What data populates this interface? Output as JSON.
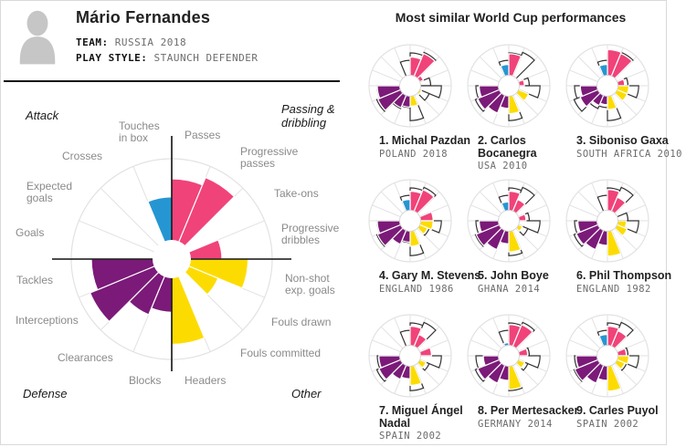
{
  "header": {
    "player_name": "Mário Fernandes",
    "team_label": "TEAM:",
    "team_value": "RUSSIA 2018",
    "style_label": "PLAY STYLE:",
    "style_value": "STAUNCH DEFENDER"
  },
  "similar_panel": {
    "title": "Most similar World Cup performances"
  },
  "chart_data": {
    "type": "pie",
    "variant": "polar-area-wind-rose",
    "description": "16-metric radial wedge chart; wedge length = metric value (fraction of full radius). Quadrants group metrics by phase of play.",
    "scale": [
      0,
      1
    ],
    "quadrants": [
      {
        "label": "Attack",
        "position": "top-left",
        "color": "#2696d2"
      },
      {
        "label": "Passing & dribbling",
        "position": "top-right",
        "color": "#f0437a"
      },
      {
        "label": "Defense",
        "position": "bottom-left",
        "color": "#7b1a78"
      },
      {
        "label": "Other",
        "position": "bottom-right",
        "color": "#fcdc00"
      }
    ],
    "categories": [
      "Passes",
      "Progressive passes",
      "Take-ons",
      "Progressive dribbles",
      "Non-shot exp. goals",
      "Fouls drawn",
      "Fouls committed",
      "Headers",
      "Blocks",
      "Clearances",
      "Interceptions",
      "Tackles",
      "Goals",
      "Expected goals",
      "Crosses",
      "Touches in box"
    ],
    "category_colors": [
      "#f0437a",
      "#f0437a",
      "#f0437a",
      "#f0437a",
      "#fcdc00",
      "#fcdc00",
      "#fcdc00",
      "#fcdc00",
      "#7b1a78",
      "#7b1a78",
      "#7b1a78",
      "#7b1a78",
      "#2696d2",
      "#2696d2",
      "#2696d2",
      "#2696d2"
    ],
    "main_player": "Mário Fernandes",
    "values": [
      0.8,
      0.88,
      0,
      0.5,
      0.76,
      0.5,
      0,
      0.85,
      0.53,
      0.6,
      0.88,
      0.8,
      0,
      0,
      0,
      0.62
    ],
    "outline_note": "Each small-multiple shows the similar player's filled wedges with Mário Fernandes's values as a black-outlined overlay.",
    "similar_players": [
      {
        "name": "1. Michal Pazdan",
        "meta": "POLAND 2018",
        "values": [
          0.7,
          0.85,
          0.35,
          0,
          0,
          0.3,
          0,
          0.5,
          0.52,
          0.58,
          0.85,
          0.8,
          0,
          0,
          0,
          0
        ]
      },
      {
        "name": "2. Carlos Bocanegra",
        "meta": "USA 2010",
        "values": [
          0.78,
          0,
          0,
          0.38,
          0,
          0.52,
          0,
          0.68,
          0.55,
          0.72,
          0.82,
          0.72,
          0,
          0,
          0,
          0.52
        ]
      },
      {
        "name": "3. Siboniso Gaxa",
        "meta": "SOUTH AFRICA 2010",
        "values": [
          0.88,
          0.85,
          0,
          0.42,
          0.52,
          0.52,
          0,
          0.58,
          0.46,
          0.52,
          0.72,
          0.66,
          0,
          0,
          0,
          0.52
        ]
      },
      {
        "name": "4. Gary M. Stevens",
        "meta": "ENGLAND 1986",
        "values": [
          0.72,
          0.82,
          0,
          0.56,
          0.56,
          0.46,
          0,
          0.62,
          0.52,
          0.62,
          0.86,
          0.8,
          0,
          0,
          0,
          0.52
        ]
      },
      {
        "name": "5. John Boye",
        "meta": "GHANA 2014",
        "values": [
          0.72,
          0.56,
          0,
          0.42,
          0,
          0.36,
          0,
          0.76,
          0.56,
          0.76,
          0.86,
          0.72,
          0,
          0,
          0,
          0.46
        ]
      },
      {
        "name": "6. Phil Thompson",
        "meta": "ENGLAND 1982",
        "values": [
          0.76,
          0.62,
          0,
          0,
          0.46,
          0.52,
          0,
          0.86,
          0.6,
          0.76,
          0.82,
          0.72,
          0,
          0,
          0,
          0
        ]
      },
      {
        "name": "7. Miguel Ángel Nadal",
        "meta": "SPAIN 2002",
        "values": [
          0.72,
          0.56,
          0,
          0.52,
          0,
          0.42,
          0,
          0.72,
          0.56,
          0.62,
          0.82,
          0.76,
          0,
          0,
          0,
          0
        ]
      },
      {
        "name": "8. Per Mertesacker",
        "meta": "GERMANY 2014",
        "values": [
          0.76,
          0.82,
          0,
          0.46,
          0,
          0.42,
          0,
          0.82,
          0.6,
          0.72,
          0.82,
          0.62,
          0,
          0,
          0,
          0.32
        ]
      },
      {
        "name": "9. Carles Puyol",
        "meta": "SPAIN 2002",
        "values": [
          0.72,
          0.66,
          0,
          0.46,
          0.52,
          0.46,
          0,
          0.86,
          0.6,
          0.72,
          0.86,
          0.76,
          0,
          0,
          0,
          0.52
        ]
      }
    ],
    "style_colors": {
      "grid": "#e2e2e2",
      "axis": "#111111",
      "outline_overlay": "#333333",
      "sector_label": "#8a8a8a",
      "hole": "#ffffff"
    }
  }
}
